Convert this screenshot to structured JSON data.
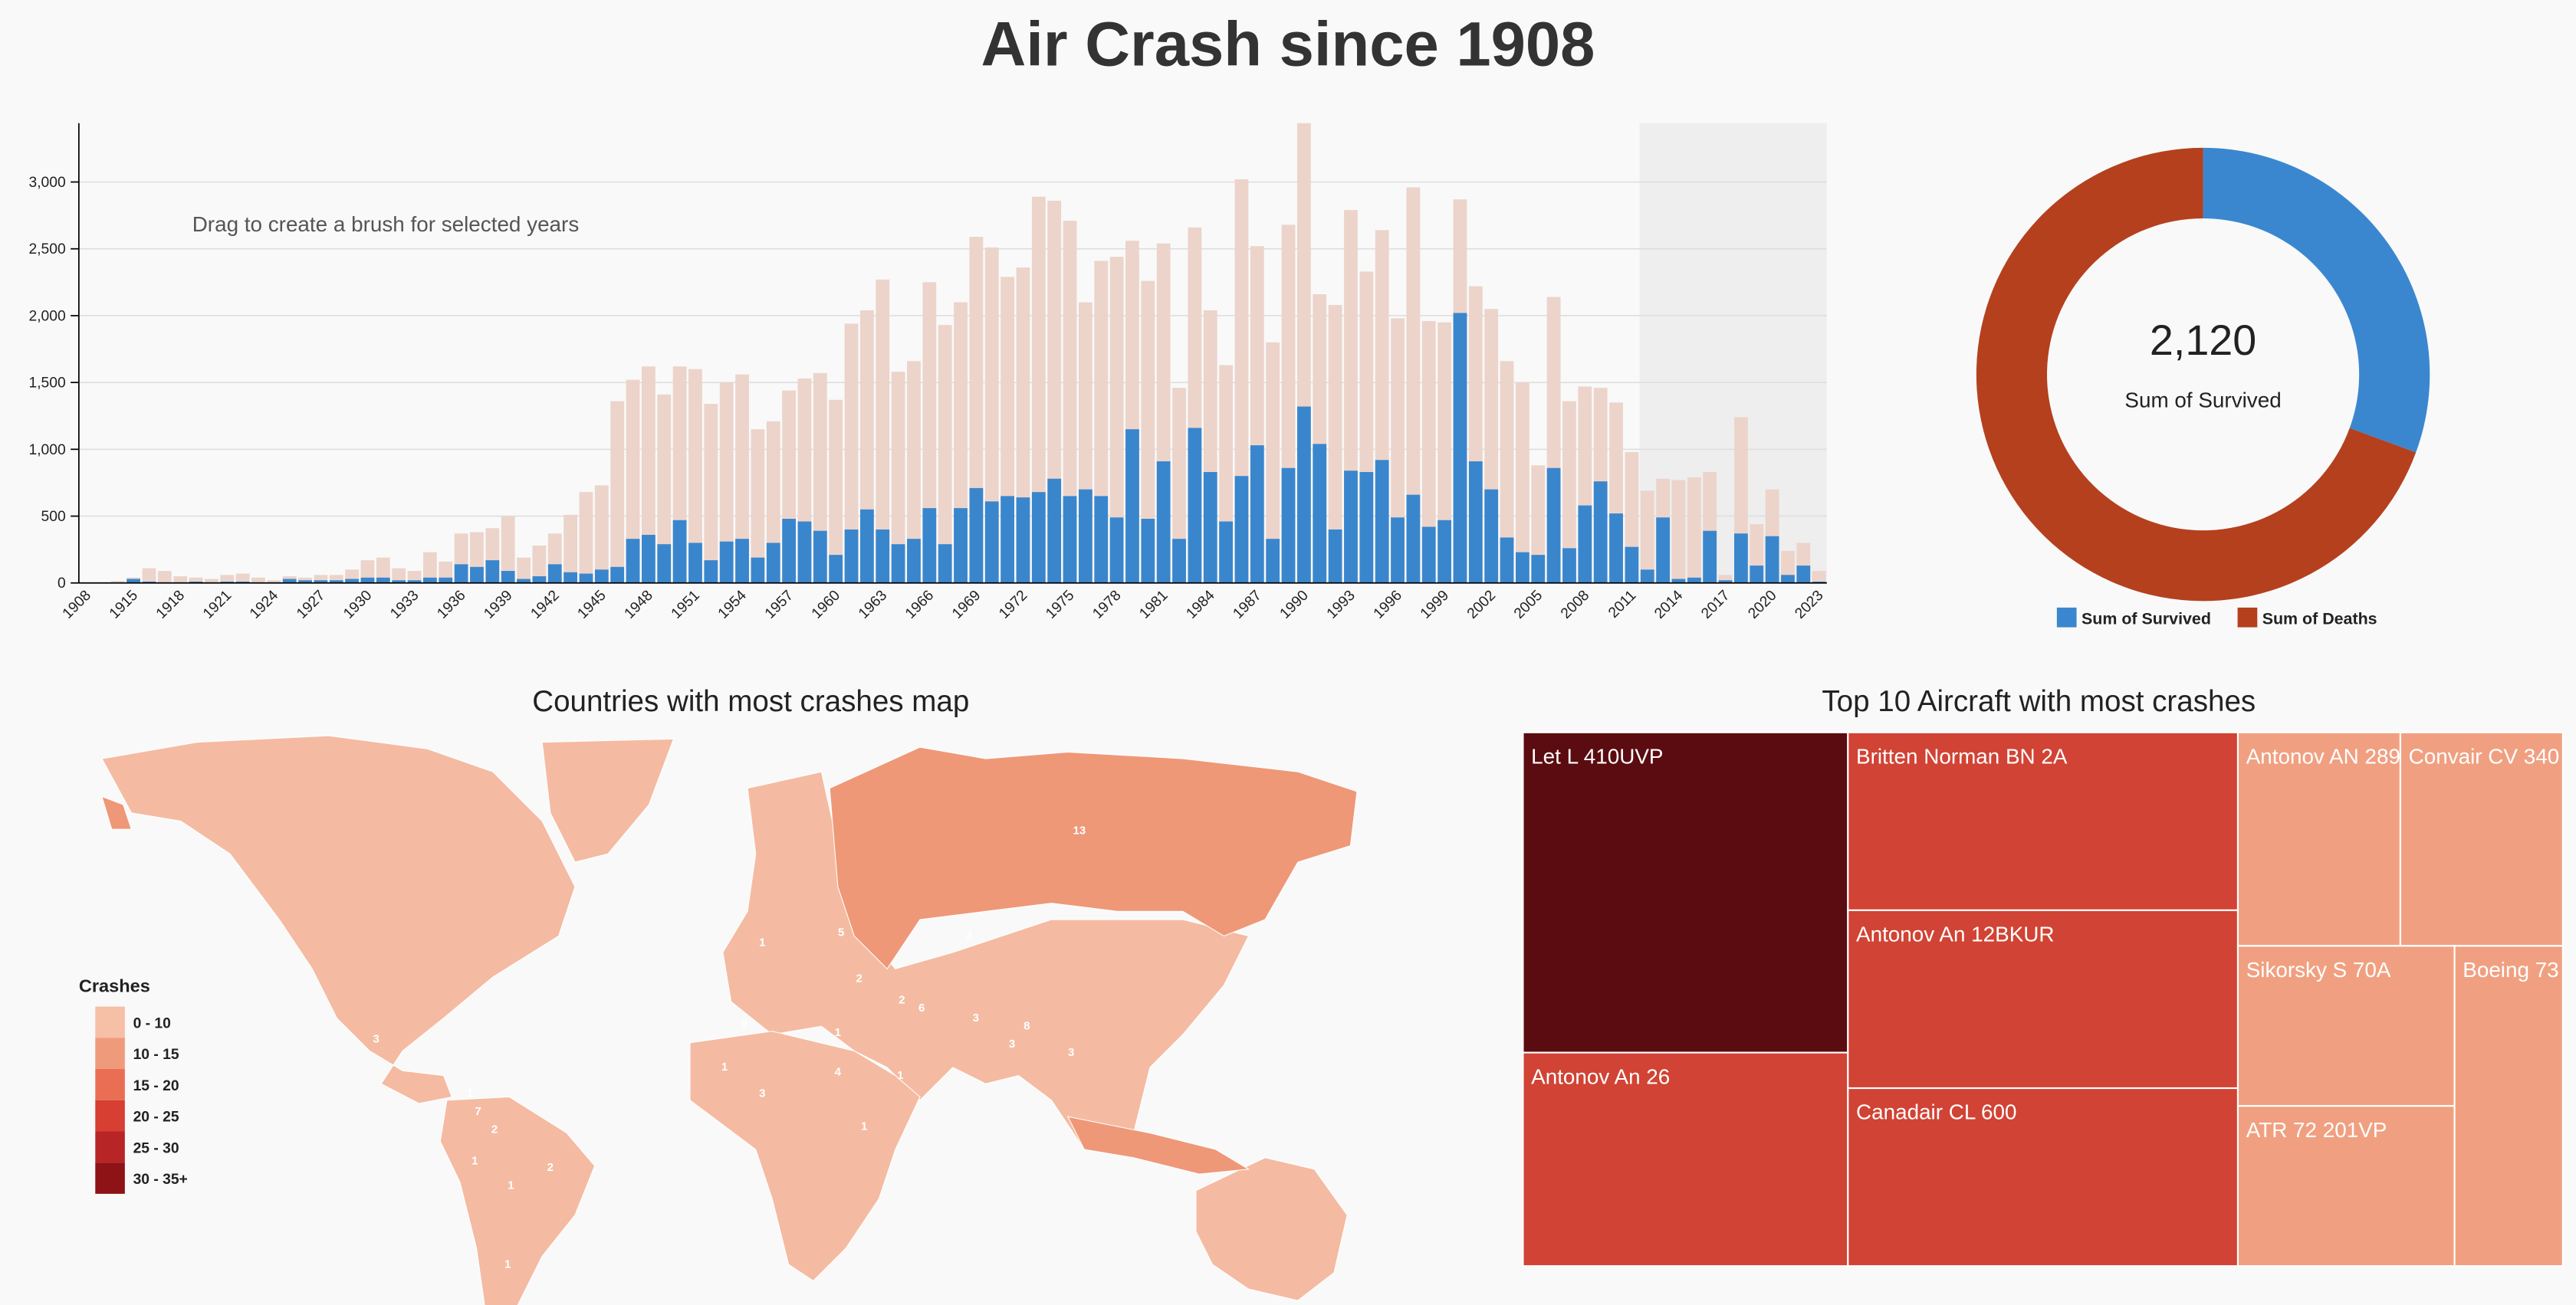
{
  "title": "Air Crash since 1908",
  "chart_data": [
    {
      "type": "bar",
      "annotation": "Drag to create a brush for selected years",
      "categories": [
        1908,
        null,
        null,
        1915,
        null,
        null,
        1918,
        null,
        null,
        1921,
        null,
        null,
        1924,
        null,
        null,
        1927,
        null,
        null,
        1930,
        null,
        null,
        1933,
        null,
        null,
        1936,
        null,
        null,
        1939,
        null,
        null,
        1942,
        null,
        null,
        1945,
        null,
        null,
        1948,
        null,
        null,
        1951,
        null,
        null,
        1954,
        null,
        null,
        1957,
        null,
        null,
        1960,
        null,
        null,
        1963,
        null,
        null,
        1966,
        null,
        null,
        1969,
        null,
        null,
        1972,
        null,
        null,
        1975,
        null,
        null,
        1978,
        null,
        null,
        1981,
        null,
        null,
        1984,
        null,
        null,
        1987,
        null,
        null,
        1990,
        null,
        null,
        1993,
        null,
        null,
        1996,
        null,
        null,
        1999,
        null,
        null,
        2002,
        null,
        null,
        2005,
        null,
        null,
        2008,
        null,
        null,
        2011,
        null,
        null,
        2014,
        null,
        null,
        2017,
        null,
        null,
        2020,
        null,
        null,
        2023
      ],
      "series": [
        {
          "color": "#ecd4cb",
          "values": [
            2,
            5,
            15,
            40,
            110,
            90,
            50,
            40,
            30,
            60,
            70,
            40,
            20,
            50,
            40,
            60,
            60,
            100,
            170,
            190,
            110,
            90,
            230,
            160,
            370,
            380,
            410,
            500,
            190,
            280,
            370,
            510,
            680,
            730,
            1360,
            1520,
            1620,
            1410,
            1620,
            1600,
            1340,
            1500,
            1560,
            1150,
            1210,
            1440,
            1530,
            1570,
            1370,
            1940,
            2040,
            2270,
            1580,
            1660,
            2250,
            1930,
            2100,
            2590,
            2510,
            2290,
            2360,
            2890,
            2860,
            2710,
            2100,
            2410,
            2440,
            2560,
            2260,
            2540,
            1460,
            2660,
            2040,
            1630,
            3020,
            2520,
            1800,
            2680,
            3440,
            2160,
            2080,
            2790,
            2330,
            2640,
            1980,
            2960,
            1960,
            1950,
            2870,
            2220,
            2050,
            1660,
            1500,
            880,
            2140,
            1360,
            1470,
            1460,
            1350,
            980,
            690,
            780,
            770,
            790,
            830,
            60,
            1240,
            440,
            700,
            240,
            300,
            90
          ]
        },
        {
          "color": "#3a86cd",
          "values": [
            1,
            0,
            0,
            30,
            10,
            5,
            5,
            10,
            5,
            10,
            10,
            5,
            5,
            30,
            20,
            20,
            20,
            30,
            40,
            40,
            20,
            20,
            40,
            40,
            140,
            120,
            170,
            90,
            30,
            50,
            140,
            80,
            70,
            100,
            120,
            330,
            360,
            290,
            470,
            300,
            170,
            310,
            330,
            190,
            300,
            480,
            460,
            390,
            210,
            400,
            550,
            400,
            290,
            330,
            560,
            290,
            560,
            710,
            610,
            650,
            640,
            680,
            780,
            650,
            700,
            650,
            490,
            1150,
            480,
            910,
            330,
            1160,
            830,
            460,
            800,
            1030,
            330,
            860,
            1320,
            1040,
            400,
            840,
            830,
            920,
            490,
            660,
            420,
            470,
            2020,
            910,
            700,
            340,
            230,
            210,
            860,
            260,
            580,
            760,
            520,
            270,
            100,
            490,
            30,
            40,
            390,
            20,
            370,
            130,
            350,
            60,
            130,
            10
          ]
        }
      ],
      "ylim": [
        0,
        3440
      ],
      "yticks": [
        0,
        500,
        {
          "value": 1000,
          "label": "1,000"
        },
        {
          "value": 1500,
          "label": "1,500"
        },
        {
          "value": 2000,
          "label": "2,000"
        },
        {
          "value": 2500,
          "label": "2,500"
        },
        {
          "value": 3000,
          "label": "3,000"
        }
      ],
      "grid": true
    },
    {
      "type": "pie",
      "categories": [
        "Sum of Survived",
        "Sum of Deaths"
      ],
      "values": [
        2120,
        4810
      ],
      "value_labels": [
        "2,120",
        null
      ],
      "colors": [
        "#3a87cf",
        "#b5401e"
      ],
      "legend": "bottom"
    },
    {
      "type": "choropleth",
      "title": "Countries with most crashes map",
      "legend_title": "Crashes",
      "legend": [
        {
          "label": "0 - 10",
          "color": "#f6c0a6"
        },
        {
          "label": "10 - 15",
          "color": "#f09a7c"
        },
        {
          "label": "15 - 20",
          "color": "#ea6e54"
        },
        {
          "label": "20 - 25",
          "color": "#d63f32"
        },
        {
          "label": "25 - 30",
          "color": "#b82526"
        },
        {
          "label": "30 - 35+",
          "color": "#8e1316"
        }
      ],
      "values": [
        13,
        3,
        5,
        1,
        2,
        3,
        1,
        2,
        6,
        3,
        8,
        3,
        3,
        3,
        1,
        3,
        4,
        1,
        7,
        1,
        2,
        1,
        1,
        2,
        1,
        1
      ]
    },
    {
      "type": "treemap",
      "title": "Top 10 Aircraft with most crashes",
      "categories": [
        "Let L 410UVP",
        "Antonov An 26",
        "Britten Norman BN 2A",
        "Antonov An 12BKUR",
        "Canadair CL 600",
        "Antonov AN 289",
        "Convair CV 340",
        "Sikorsky S 70A",
        "ATR 72 201VP",
        "Boeing 73"
      ],
      "values": [
        3,
        2,
        2,
        2,
        2,
        1,
        1,
        1,
        1,
        1
      ],
      "colors": [
        "#5a0c11",
        "#d14334",
        "#d14334",
        "#d14334",
        "#d14334",
        "#f0a081",
        "#f0a081",
        "#f0a081",
        "#f0a081",
        "#f0a081"
      ]
    }
  ]
}
